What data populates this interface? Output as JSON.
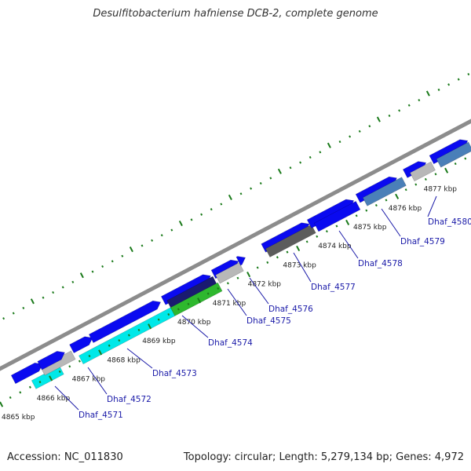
{
  "title": "Desulfitobacterium hafniense DCB-2, complete genome",
  "footer": {
    "accession": "Accession: NC_011830",
    "summary": "Topology: circular; Length: 5,279,134 bp; Genes: 4,972"
  },
  "colors": {
    "backbone": "#8c8c8c",
    "tick_green": "#1a7a1a",
    "gene_blue": "#0a0af0",
    "gene_cyan": "#00e8e8",
    "gene_gray": "#b8b8b8",
    "gene_darkgray": "#5c5c5c",
    "gene_navy": "#1a1a70",
    "gene_green": "#2eb82e",
    "gene_steel": "#4a7fb8",
    "label_blue": "#1a1aa8"
  },
  "scale_ticks": [
    "4865 kbp",
    "4866 kbp",
    "4867 kbp",
    "4868 kbp",
    "4869 kbp",
    "4870 kbp",
    "4871 kbp",
    "4872 kbp",
    "4873 kbp",
    "4874 kbp",
    "4875 kbp",
    "4876 kbp",
    "4877 kbp"
  ],
  "gene_labels": [
    "Dhaf_4571",
    "Dhaf_4572",
    "Dhaf_4573",
    "Dhaf_4574",
    "Dhaf_4575",
    "Dhaf_4576",
    "Dhaf_4577",
    "Dhaf_4578",
    "Dhaf_4579",
    "Dhaf_4580"
  ]
}
